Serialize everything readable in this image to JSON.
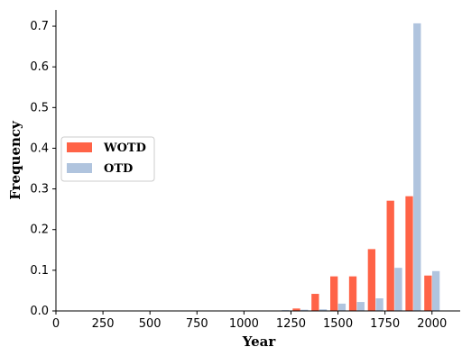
{
  "chart_data": {
    "type": "bar",
    "xlabel": "Year",
    "ylabel": "Frequency",
    "xlim": [
      0,
      2150
    ],
    "ylim": [
      0,
      0.74
    ],
    "x_ticks": [
      "0",
      "250",
      "500",
      "750",
      "1000",
      "1250",
      "1500",
      "1750",
      "2000"
    ],
    "y_ticks": [
      "0.0",
      "0.1",
      "0.2",
      "0.3",
      "0.4",
      "0.5",
      "0.6",
      "0.7"
    ],
    "x": [
      100,
      200,
      300,
      400,
      500,
      600,
      700,
      800,
      900,
      1000,
      1100,
      1200,
      1300,
      1400,
      1500,
      1600,
      1700,
      1800,
      1900,
      2000
    ],
    "series": [
      {
        "name": "WOTD",
        "color": "#FF6347",
        "values": [
          0.001,
          0.001,
          0.001,
          0.001,
          0.001,
          0.001,
          0.001,
          0.001,
          0.001,
          0.001,
          0.001,
          0.001,
          0.006,
          0.042,
          0.085,
          0.085,
          0.152,
          0.271,
          0.282,
          0.087
        ]
      },
      {
        "name": "OTD",
        "color": "#B0C4DE",
        "values": [
          0.001,
          0.001,
          0.001,
          0.001,
          0.001,
          0.001,
          0.001,
          0.001,
          0.001,
          0.001,
          0.001,
          0.002,
          0.003,
          0.004,
          0.018,
          0.022,
          0.031,
          0.106,
          0.707,
          0.098
        ]
      }
    ],
    "legend_position": "center-left",
    "grid": false
  }
}
